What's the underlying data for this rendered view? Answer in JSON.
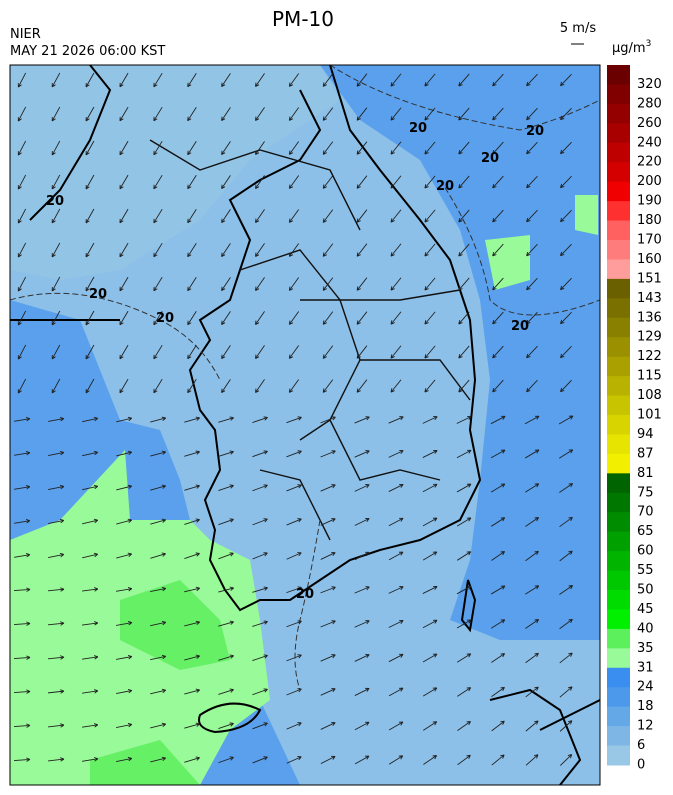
{
  "header": {
    "title": "PM-10",
    "org": "NIER",
    "datetime": "MAY 21 2026 06:00 KST"
  },
  "wind_scale": {
    "label": "5 m/s"
  },
  "map": {
    "contour_labels": [
      "20",
      "20",
      "20",
      "20",
      "20",
      "20",
      "20",
      "20",
      "20"
    ]
  },
  "colorbar": {
    "unit": {
      "base": "μg/m",
      "exp": "3"
    },
    "levels": [
      "320",
      "280",
      "260",
      "240",
      "220",
      "200",
      "190",
      "180",
      "170",
      "160",
      "151",
      "143",
      "136",
      "129",
      "122",
      "115",
      "108",
      "101",
      "94",
      "87",
      "81",
      "75",
      "70",
      "65",
      "60",
      "55",
      "50",
      "45",
      "40",
      "35",
      "31",
      "24",
      "18",
      "12",
      "6",
      "0"
    ],
    "colors": [
      "#6b0000",
      "#800000",
      "#940000",
      "#a80000",
      "#be0000",
      "#d40000",
      "#f00000",
      "#ff3030",
      "#ff6060",
      "#ff7c7c",
      "#ff9c9c",
      "#6a6000",
      "#7a7000",
      "#8a8000",
      "#9a9000",
      "#aaa000",
      "#bab200",
      "#c8c400",
      "#d8d400",
      "#e6e400",
      "#f2f000",
      "#006400",
      "#007800",
      "#008c00",
      "#00a000",
      "#00b400",
      "#00c800",
      "#00dc00",
      "#00f000",
      "#5cf05c",
      "#98fa98",
      "#3a8ef0",
      "#4c98ea",
      "#64a8e8",
      "#7eb6e6",
      "#98c8e6"
    ]
  }
}
